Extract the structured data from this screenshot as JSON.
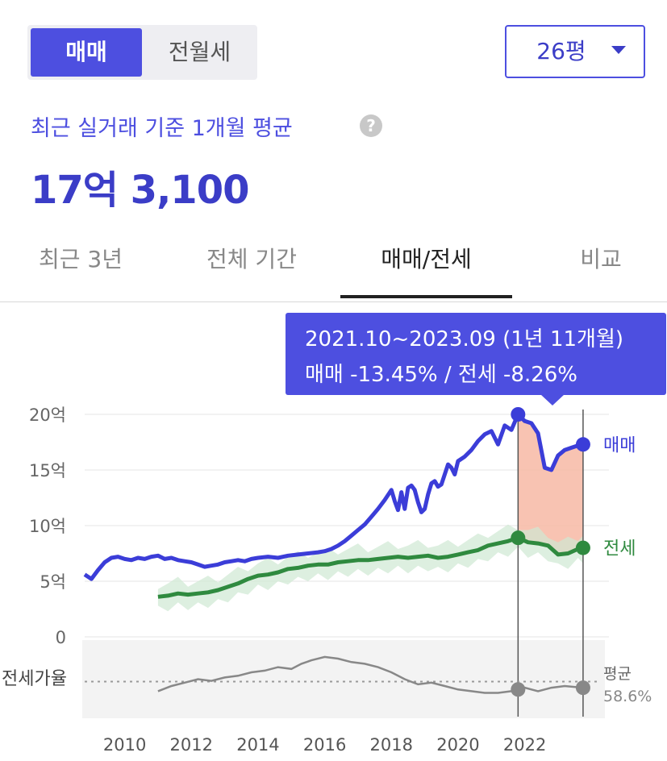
{
  "toggle": {
    "active": "매매",
    "inactive": "전월세"
  },
  "size_select": {
    "value": "26평"
  },
  "summary": {
    "label": "최근 실거래 기준 1개월 평균",
    "help": "?",
    "price": "17억 3,100"
  },
  "tabs": [
    {
      "label": "최근 3년",
      "active": false
    },
    {
      "label": "전체 기간",
      "active": false
    },
    {
      "label": "매매/전세",
      "active": true
    },
    {
      "label": "비교",
      "active": false
    }
  ],
  "tooltip": {
    "period": "2021.10~2023.09 (1년 11개월)",
    "change": "매매 -13.45%  /  전세 -8.26%"
  },
  "colors": {
    "sale": "#3b3dd8",
    "jeonse": "#2f8a3f",
    "jeonse_band": "#cfe8d3",
    "highlight": "#f7b9a4",
    "ratio": "#888888",
    "accent": "#4d4fe0"
  },
  "chart_data": {
    "type": "line",
    "y_unit": "억",
    "ylim": [
      0,
      20
    ],
    "y_ticks": [
      {
        "value": 20,
        "label": "20억"
      },
      {
        "value": 15,
        "label": "15억"
      },
      {
        "value": 10,
        "label": "10억"
      },
      {
        "value": 5,
        "label": "5억"
      },
      {
        "value": 0,
        "label": "0"
      }
    ],
    "xlim": [
      2008.8,
      2023.8
    ],
    "x_ticks": [
      "2010",
      "2012",
      "2014",
      "2016",
      "2018",
      "2020",
      "2022"
    ],
    "highlight_range": [
      2021.8,
      2023.75
    ],
    "series": [
      {
        "name": "매매",
        "x": [
          2008.8,
          2009.0,
          2009.2,
          2009.4,
          2009.6,
          2009.8,
          2010.0,
          2010.2,
          2010.4,
          2010.6,
          2010.8,
          2011.0,
          2011.2,
          2011.4,
          2011.6,
          2011.8,
          2012.0,
          2012.2,
          2012.4,
          2012.6,
          2012.8,
          2013.0,
          2013.2,
          2013.4,
          2013.6,
          2013.8,
          2014.0,
          2014.3,
          2014.6,
          2014.9,
          2015.2,
          2015.5,
          2015.8,
          2016.0,
          2016.2,
          2016.4,
          2016.6,
          2016.8,
          2017.0,
          2017.2,
          2017.4,
          2017.6,
          2017.8,
          2018.0,
          2018.1,
          2018.2,
          2018.3,
          2018.4,
          2018.5,
          2018.6,
          2018.7,
          2018.8,
          2018.9,
          2019.0,
          2019.1,
          2019.2,
          2019.3,
          2019.4,
          2019.5,
          2019.6,
          2019.7,
          2019.8,
          2019.9,
          2020.0,
          2020.2,
          2020.4,
          2020.6,
          2020.8,
          2021.0,
          2021.2,
          2021.4,
          2021.6,
          2021.8,
          2022.0,
          2022.2,
          2022.4,
          2022.6,
          2022.8,
          2023.0,
          2023.2,
          2023.4,
          2023.6,
          2023.75
        ],
        "values": [
          5.6,
          5.2,
          6.0,
          6.7,
          7.1,
          7.2,
          7.0,
          6.9,
          7.1,
          7.0,
          7.2,
          7.3,
          7.0,
          7.1,
          6.9,
          6.8,
          6.7,
          6.5,
          6.3,
          6.4,
          6.5,
          6.7,
          6.8,
          6.9,
          6.8,
          7.0,
          7.1,
          7.2,
          7.1,
          7.3,
          7.4,
          7.5,
          7.6,
          7.7,
          7.9,
          8.2,
          8.6,
          9.1,
          9.6,
          10.1,
          10.8,
          11.5,
          12.3,
          13.2,
          12.2,
          11.4,
          13.0,
          11.5,
          13.4,
          13.6,
          13.2,
          12.1,
          11.2,
          11.5,
          12.8,
          13.8,
          14.0,
          13.5,
          13.7,
          14.6,
          15.5,
          15.2,
          14.6,
          15.8,
          16.2,
          16.8,
          17.6,
          18.2,
          18.5,
          17.3,
          19.0,
          18.6,
          20.0,
          19.4,
          19.2,
          18.3,
          15.2,
          15.0,
          16.3,
          16.8,
          17.0,
          17.2,
          17.3
        ]
      },
      {
        "name": "전세",
        "x": [
          2011.0,
          2011.3,
          2011.6,
          2011.9,
          2012.2,
          2012.5,
          2012.8,
          2013.1,
          2013.4,
          2013.7,
          2014.0,
          2014.3,
          2014.6,
          2014.9,
          2015.2,
          2015.5,
          2015.8,
          2016.1,
          2016.4,
          2016.7,
          2017.0,
          2017.3,
          2017.6,
          2017.9,
          2018.2,
          2018.5,
          2018.8,
          2019.1,
          2019.4,
          2019.7,
          2020.0,
          2020.3,
          2020.6,
          2020.9,
          2021.2,
          2021.5,
          2021.8,
          2022.1,
          2022.4,
          2022.7,
          2023.0,
          2023.3,
          2023.6,
          2023.75
        ],
        "values": [
          3.6,
          3.7,
          3.9,
          3.8,
          3.9,
          4.0,
          4.2,
          4.5,
          4.8,
          5.2,
          5.5,
          5.6,
          5.8,
          6.1,
          6.2,
          6.4,
          6.5,
          6.5,
          6.7,
          6.8,
          6.9,
          6.9,
          7.0,
          7.1,
          7.2,
          7.1,
          7.2,
          7.3,
          7.1,
          7.2,
          7.4,
          7.6,
          7.8,
          8.2,
          8.4,
          8.6,
          8.9,
          8.5,
          8.4,
          8.2,
          7.4,
          7.5,
          7.9,
          8.0
        ]
      },
      {
        "name": "전세가율",
        "x": [
          2011.0,
          2011.4,
          2011.8,
          2012.2,
          2012.6,
          2013.0,
          2013.4,
          2013.8,
          2014.2,
          2014.6,
          2015.0,
          2015.3,
          2015.6,
          2016.0,
          2016.4,
          2016.8,
          2017.2,
          2017.6,
          2018.0,
          2018.4,
          2018.8,
          2019.2,
          2019.6,
          2020.0,
          2020.4,
          2020.8,
          2021.2,
          2021.6,
          2021.8,
          2022.0,
          2022.4,
          2022.8,
          2023.2,
          2023.75
        ],
        "values": [
          53,
          56,
          58,
          60,
          59,
          61,
          62,
          64,
          65,
          67,
          66,
          69,
          71,
          73,
          72,
          70,
          69,
          67,
          64,
          60,
          57,
          58,
          56,
          54,
          53,
          52,
          52,
          53,
          54,
          55,
          53,
          55,
          56,
          55
        ]
      }
    ],
    "ratio_panel": {
      "label": "전세가율",
      "avg_label": "평균",
      "avg_value": "58.6%",
      "ylim": [
        40,
        80
      ]
    },
    "series_labels": {
      "sale": "매매",
      "jeonse": "전세"
    }
  }
}
